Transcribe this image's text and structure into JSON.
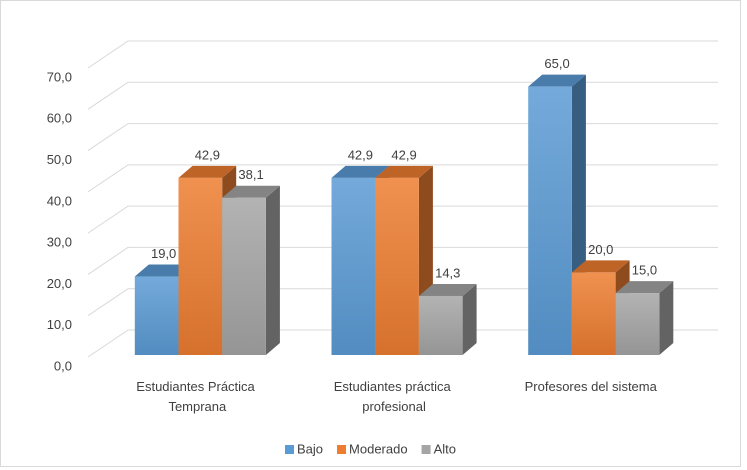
{
  "chart_data": {
    "type": "bar3d",
    "categories": [
      "Estudiantes Práctica Temprana",
      "Estudiantes práctica profesional",
      "Profesores del sistema"
    ],
    "series": [
      {
        "name": "Bajo",
        "color": "#5b9bd5",
        "values": [
          19.0,
          42.9,
          65.0
        ],
        "value_labels": [
          "19,0",
          "42,9",
          "65,0"
        ]
      },
      {
        "name": "Moderado",
        "color": "#ed7d31",
        "values": [
          42.9,
          42.9,
          20.0
        ],
        "value_labels": [
          "42,9",
          "42,9",
          "20,0"
        ]
      },
      {
        "name": "Alto",
        "color": "#a5a5a5",
        "values": [
          38.1,
          14.3,
          15.0
        ],
        "value_labels": [
          "38,1",
          "14,3",
          "15,0"
        ]
      }
    ],
    "ylim": [
      0,
      70
    ],
    "yticks": [
      {
        "value": 0,
        "label": "0,0"
      },
      {
        "value": 10,
        "label": "10,0"
      },
      {
        "value": 20,
        "label": "20,0"
      },
      {
        "value": 30,
        "label": "30,0"
      },
      {
        "value": 40,
        "label": "40,0"
      },
      {
        "value": 50,
        "label": "50,0"
      },
      {
        "value": 60,
        "label": "60,0"
      },
      {
        "value": 70,
        "label": "70,0"
      }
    ],
    "grid": true,
    "legend": "bottom"
  }
}
